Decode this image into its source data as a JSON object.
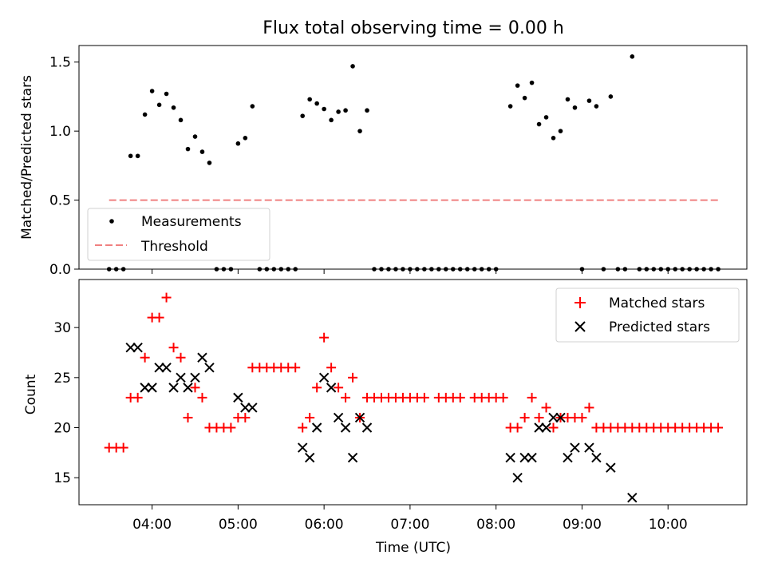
{
  "figure": {
    "title": "Flux total observing time = 0.00 h"
  },
  "chart_data": [
    {
      "type": "scatter",
      "panel": "top",
      "title": "Flux total observing time = 0.00 h",
      "xlabel": "",
      "ylabel": "Matched/Predicted stars",
      "xlim": [
        "03:09",
        "10:55"
      ],
      "ylim": [
        0,
        1.62
      ],
      "yticks": [
        0.0,
        0.5,
        1.0,
        1.5
      ],
      "ytick_labels": [
        "0.0",
        "0.5",
        "1.0",
        "1.5"
      ],
      "legend_position": "lower-left",
      "series": [
        {
          "name": "Measurements",
          "marker": "dot",
          "color": "#000000",
          "points": [
            [
              "03:30",
              0.0
            ],
            [
              "03:35",
              0.0
            ],
            [
              "03:40",
              0.0
            ],
            [
              "03:45",
              0.82
            ],
            [
              "03:50",
              0.82
            ],
            [
              "03:55",
              1.12
            ],
            [
              "04:00",
              1.29
            ],
            [
              "04:05",
              1.19
            ],
            [
              "04:10",
              1.27
            ],
            [
              "04:15",
              1.17
            ],
            [
              "04:20",
              1.08
            ],
            [
              "04:25",
              0.87
            ],
            [
              "04:30",
              0.96
            ],
            [
              "04:35",
              0.85
            ],
            [
              "04:40",
              0.77
            ],
            [
              "04:45",
              0.0
            ],
            [
              "04:50",
              0.0
            ],
            [
              "04:55",
              0.0
            ],
            [
              "05:00",
              0.91
            ],
            [
              "05:05",
              0.95
            ],
            [
              "05:10",
              1.18
            ],
            [
              "05:15",
              0.0
            ],
            [
              "05:20",
              0.0
            ],
            [
              "05:25",
              0.0
            ],
            [
              "05:30",
              0.0
            ],
            [
              "05:35",
              0.0
            ],
            [
              "05:40",
              0.0
            ],
            [
              "05:45",
              1.11
            ],
            [
              "05:50",
              1.23
            ],
            [
              "05:55",
              1.2
            ],
            [
              "06:00",
              1.16
            ],
            [
              "06:05",
              1.08
            ],
            [
              "06:10",
              1.14
            ],
            [
              "06:15",
              1.15
            ],
            [
              "06:20",
              1.47
            ],
            [
              "06:25",
              1.0
            ],
            [
              "06:30",
              1.15
            ],
            [
              "06:35",
              0.0
            ],
            [
              "06:40",
              0.0
            ],
            [
              "06:45",
              0.0
            ],
            [
              "06:50",
              0.0
            ],
            [
              "06:55",
              0.0
            ],
            [
              "07:00",
              0.0
            ],
            [
              "07:05",
              0.0
            ],
            [
              "07:10",
              0.0
            ],
            [
              "07:15",
              0.0
            ],
            [
              "07:20",
              0.0
            ],
            [
              "07:25",
              0.0
            ],
            [
              "07:30",
              0.0
            ],
            [
              "07:35",
              0.0
            ],
            [
              "07:40",
              0.0
            ],
            [
              "07:45",
              0.0
            ],
            [
              "07:50",
              0.0
            ],
            [
              "07:55",
              0.0
            ],
            [
              "08:00",
              0.0
            ],
            [
              "08:10",
              1.18
            ],
            [
              "08:15",
              1.33
            ],
            [
              "08:20",
              1.24
            ],
            [
              "08:25",
              1.35
            ],
            [
              "08:30",
              1.05
            ],
            [
              "08:35",
              1.1
            ],
            [
              "08:40",
              0.95
            ],
            [
              "08:45",
              1.0
            ],
            [
              "08:50",
              1.23
            ],
            [
              "08:55",
              1.17
            ],
            [
              "09:00",
              0.0
            ],
            [
              "09:05",
              1.22
            ],
            [
              "09:10",
              1.18
            ],
            [
              "09:15",
              0.0
            ],
            [
              "09:20",
              1.25
            ],
            [
              "09:25",
              0.0
            ],
            [
              "09:30",
              0.0
            ],
            [
              "09:35",
              1.54
            ],
            [
              "09:40",
              0.0
            ],
            [
              "09:45",
              0.0
            ],
            [
              "09:50",
              0.0
            ],
            [
              "09:55",
              0.0
            ],
            [
              "10:00",
              0.0
            ],
            [
              "10:05",
              0.0
            ],
            [
              "10:10",
              0.0
            ],
            [
              "10:15",
              0.0
            ],
            [
              "10:20",
              0.0
            ],
            [
              "10:25",
              0.0
            ],
            [
              "10:30",
              0.0
            ],
            [
              "10:35",
              0.0
            ]
          ]
        },
        {
          "name": "Threshold",
          "line_style": "dashed",
          "color": "#f08080",
          "x": [
            "03:30",
            "10:35"
          ],
          "y": [
            0.5,
            0.5
          ]
        }
      ]
    },
    {
      "type": "scatter",
      "panel": "bottom",
      "xlabel": "Time (UTC)",
      "ylabel": "Count",
      "xlim": [
        "03:09",
        "10:55"
      ],
      "ylim": [
        12.3,
        34.8
      ],
      "xticks": [
        "04:00",
        "05:00",
        "06:00",
        "07:00",
        "08:00",
        "09:00",
        "10:00"
      ],
      "yticks": [
        15,
        20,
        25,
        30
      ],
      "ytick_labels": [
        "15",
        "20",
        "25",
        "30"
      ],
      "legend_position": "upper-right",
      "series": [
        {
          "name": "Matched stars",
          "marker": "plus",
          "color": "#ff0000",
          "points": [
            [
              "03:30",
              18
            ],
            [
              "03:35",
              18
            ],
            [
              "03:40",
              18
            ],
            [
              "03:45",
              23
            ],
            [
              "03:50",
              23
            ],
            [
              "03:55",
              27
            ],
            [
              "04:00",
              31
            ],
            [
              "04:05",
              31
            ],
            [
              "04:10",
              33
            ],
            [
              "04:15",
              28
            ],
            [
              "04:20",
              27
            ],
            [
              "04:25",
              21
            ],
            [
              "04:30",
              24
            ],
            [
              "04:35",
              23
            ],
            [
              "04:40",
              20
            ],
            [
              "04:45",
              20
            ],
            [
              "04:50",
              20
            ],
            [
              "04:55",
              20
            ],
            [
              "05:00",
              21
            ],
            [
              "05:05",
              21
            ],
            [
              "05:10",
              26
            ],
            [
              "05:15",
              26
            ],
            [
              "05:20",
              26
            ],
            [
              "05:25",
              26
            ],
            [
              "05:30",
              26
            ],
            [
              "05:35",
              26
            ],
            [
              "05:40",
              26
            ],
            [
              "05:45",
              20
            ],
            [
              "05:50",
              21
            ],
            [
              "05:55",
              24
            ],
            [
              "06:00",
              29
            ],
            [
              "06:05",
              26
            ],
            [
              "06:10",
              24
            ],
            [
              "06:15",
              23
            ],
            [
              "06:20",
              25
            ],
            [
              "06:25",
              21
            ],
            [
              "06:30",
              23
            ],
            [
              "06:35",
              23
            ],
            [
              "06:40",
              23
            ],
            [
              "06:45",
              23
            ],
            [
              "06:50",
              23
            ],
            [
              "06:55",
              23
            ],
            [
              "07:00",
              23
            ],
            [
              "07:05",
              23
            ],
            [
              "07:10",
              23
            ],
            [
              "07:20",
              23
            ],
            [
              "07:25",
              23
            ],
            [
              "07:30",
              23
            ],
            [
              "07:35",
              23
            ],
            [
              "07:45",
              23
            ],
            [
              "07:50",
              23
            ],
            [
              "07:55",
              23
            ],
            [
              "08:00",
              23
            ],
            [
              "08:05",
              23
            ],
            [
              "08:10",
              20
            ],
            [
              "08:15",
              20
            ],
            [
              "08:20",
              21
            ],
            [
              "08:25",
              23
            ],
            [
              "08:30",
              21
            ],
            [
              "08:35",
              22
            ],
            [
              "08:40",
              20
            ],
            [
              "08:45",
              21
            ],
            [
              "08:50",
              21
            ],
            [
              "08:55",
              21
            ],
            [
              "09:00",
              21
            ],
            [
              "09:05",
              22
            ],
            [
              "09:10",
              20
            ],
            [
              "09:15",
              20
            ],
            [
              "09:20",
              20
            ],
            [
              "09:25",
              20
            ],
            [
              "09:30",
              20
            ],
            [
              "09:35",
              20
            ],
            [
              "09:40",
              20
            ],
            [
              "09:45",
              20
            ],
            [
              "09:50",
              20
            ],
            [
              "09:55",
              20
            ],
            [
              "10:00",
              20
            ],
            [
              "10:05",
              20
            ],
            [
              "10:10",
              20
            ],
            [
              "10:15",
              20
            ],
            [
              "10:20",
              20
            ],
            [
              "10:25",
              20
            ],
            [
              "10:30",
              20
            ],
            [
              "10:35",
              20
            ]
          ]
        },
        {
          "name": "Predicted stars",
          "marker": "x",
          "color": "#000000",
          "points": [
            [
              "03:45",
              28
            ],
            [
              "03:50",
              28
            ],
            [
              "03:55",
              24
            ],
            [
              "04:00",
              24
            ],
            [
              "04:05",
              26
            ],
            [
              "04:10",
              26
            ],
            [
              "04:15",
              24
            ],
            [
              "04:20",
              25
            ],
            [
              "04:25",
              24
            ],
            [
              "04:30",
              25
            ],
            [
              "04:35",
              27
            ],
            [
              "04:40",
              26
            ],
            [
              "05:00",
              23
            ],
            [
              "05:05",
              22
            ],
            [
              "05:10",
              22
            ],
            [
              "05:45",
              18
            ],
            [
              "05:50",
              17
            ],
            [
              "05:55",
              20
            ],
            [
              "06:00",
              25
            ],
            [
              "06:05",
              24
            ],
            [
              "06:10",
              21
            ],
            [
              "06:15",
              20
            ],
            [
              "06:20",
              17
            ],
            [
              "06:25",
              21
            ],
            [
              "06:30",
              20
            ],
            [
              "08:10",
              17
            ],
            [
              "08:15",
              15
            ],
            [
              "08:20",
              17
            ],
            [
              "08:25",
              17
            ],
            [
              "08:30",
              20
            ],
            [
              "08:35",
              20
            ],
            [
              "08:40",
              21
            ],
            [
              "08:45",
              21
            ],
            [
              "08:50",
              17
            ],
            [
              "08:55",
              18
            ],
            [
              "09:05",
              18
            ],
            [
              "09:10",
              17
            ],
            [
              "09:20",
              16
            ],
            [
              "09:35",
              13
            ]
          ]
        }
      ]
    }
  ]
}
